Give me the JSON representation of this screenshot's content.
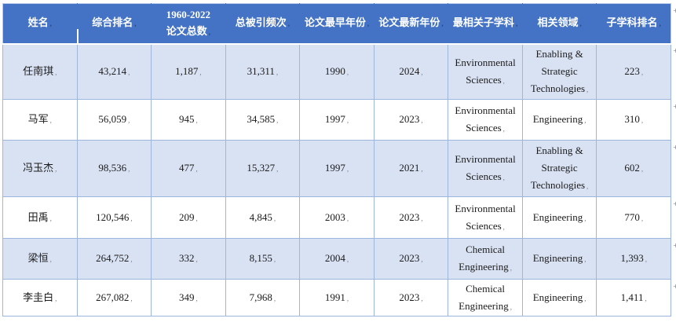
{
  "table": {
    "columns": [
      {
        "key": "name",
        "label": "姓名"
      },
      {
        "key": "overall_rank",
        "label": "综合排名"
      },
      {
        "key": "total_papers",
        "label": "1960-2022\n论文总数"
      },
      {
        "key": "total_citations",
        "label": "总被引频次"
      },
      {
        "key": "first_paper_year",
        "label": "论文最早年份"
      },
      {
        "key": "last_paper_year",
        "label": "论文最新年份"
      },
      {
        "key": "top_subdiscipline",
        "label": "最相关子学科"
      },
      {
        "key": "related_field",
        "label": "相关领域"
      },
      {
        "key": "subdiscipline_rank",
        "label": "子学科排名"
      }
    ],
    "rows": [
      {
        "name": "任南琪",
        "overall_rank": "43,214",
        "total_papers": "1,187",
        "total_citations": "31,311",
        "first_paper_year": "1990",
        "last_paper_year": "2024",
        "top_subdiscipline": "Environmental\nSciences",
        "related_field": "Enabling &\nStrategic\nTechnologies",
        "subdiscipline_rank": "223"
      },
      {
        "name": "马军",
        "overall_rank": "56,059",
        "total_papers": "945",
        "total_citations": "34,585",
        "first_paper_year": "1997",
        "last_paper_year": "2023",
        "top_subdiscipline": "Environmental\nSciences",
        "related_field": "Engineering",
        "subdiscipline_rank": "310"
      },
      {
        "name": "冯玉杰",
        "overall_rank": "98,536",
        "total_papers": "477",
        "total_citations": "15,327",
        "first_paper_year": "1997",
        "last_paper_year": "2021",
        "top_subdiscipline": "Environmental\nSciences",
        "related_field": "Enabling &\nStrategic\nTechnologies",
        "subdiscipline_rank": "602"
      },
      {
        "name": "田禹",
        "overall_rank": "120,546",
        "total_papers": "209",
        "total_citations": "4,845",
        "first_paper_year": "2003",
        "last_paper_year": "2023",
        "top_subdiscipline": "Environmental\nSciences",
        "related_field": "Engineering",
        "subdiscipline_rank": "770"
      },
      {
        "name": "梁恒",
        "overall_rank": "264,752",
        "total_papers": "332",
        "total_citations": "8,155",
        "first_paper_year": "2004",
        "last_paper_year": "2023",
        "top_subdiscipline": "Chemical\nEngineering",
        "related_field": "Engineering",
        "subdiscipline_rank": "1,393"
      },
      {
        "name": "李圭白",
        "overall_rank": "267,082",
        "total_papers": "349",
        "total_citations": "7,968",
        "first_paper_year": "1991",
        "last_paper_year": "2023",
        "top_subdiscipline": "Chemical\nEngineering",
        "related_field": "Engineering",
        "subdiscipline_rank": "1,411"
      }
    ],
    "cell_end_mark": ",",
    "row_end_mark": "+"
  },
  "colors": {
    "header_bg": "#4472C4",
    "header_text": "#FFFFFF",
    "band_bg": "#D9E2F3",
    "row_bg": "#FFFFFF",
    "border": "#9DB6DF",
    "formatting_mark": "#8A8A96",
    "caret": "#FFFFFF"
  }
}
